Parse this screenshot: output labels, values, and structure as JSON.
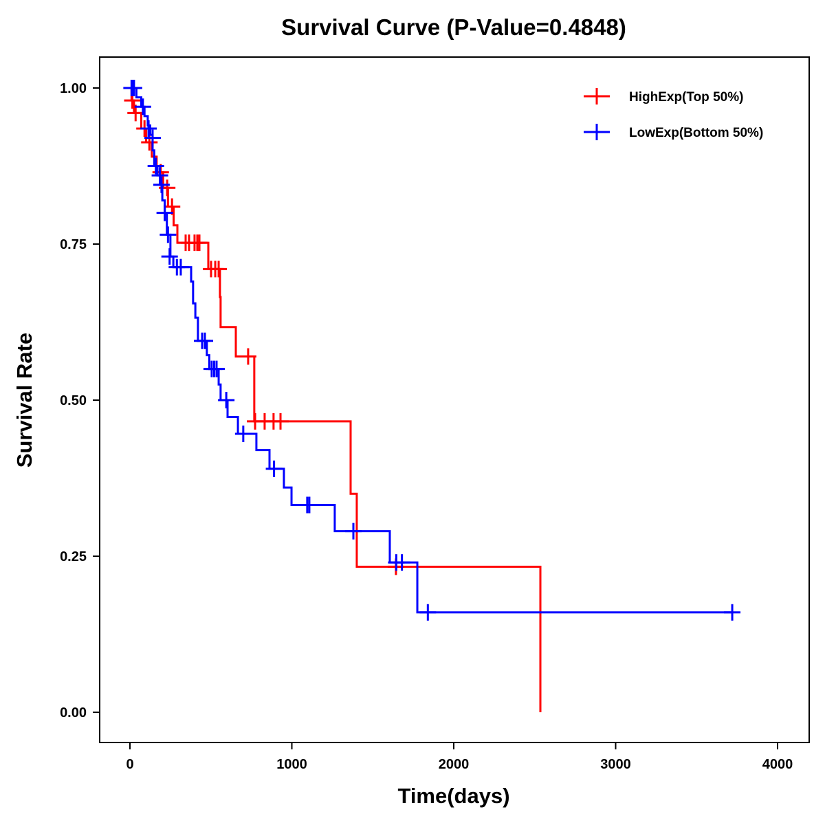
{
  "chart_data": {
    "type": "line",
    "subtype": "kaplan-meier",
    "title": "Survival Curve (P-Value=0.4848)",
    "xlabel": "Time(days)",
    "ylabel": "Survival Rate",
    "xlim": [
      -190,
      4200
    ],
    "ylim": [
      -0.048,
      1.05
    ],
    "xticks": [
      0,
      1000,
      2000,
      3000,
      4000
    ],
    "xtick_labels": [
      "0",
      "1000",
      "2000",
      "3000",
      "4000"
    ],
    "yticks": [
      0,
      0.25,
      0.5,
      0.75,
      1.0
    ],
    "ytick_labels": [
      "0.00",
      "0.25",
      "0.50",
      "0.75",
      "1.00"
    ],
    "grid": false,
    "legend_position": "top-right",
    "series": [
      {
        "name": "HighExp(Top 50%)",
        "color": "#ff0000",
        "end_time": 2535,
        "steps": [
          [
            0,
            1
          ],
          [
            10,
            0.98
          ],
          [
            25,
            0.96
          ],
          [
            70,
            0.935
          ],
          [
            100,
            0.913
          ],
          [
            135,
            0.89
          ],
          [
            165,
            0.865
          ],
          [
            205,
            0.84
          ],
          [
            235,
            0.81
          ],
          [
            270,
            0.78
          ],
          [
            293,
            0.752
          ],
          [
            484,
            0.71
          ],
          [
            556,
            0.665
          ],
          [
            560,
            0.617
          ],
          [
            654,
            0.57
          ],
          [
            768,
            0.466
          ],
          [
            1363,
            0.35
          ],
          [
            1401,
            0.233
          ],
          [
            2535,
            0
          ]
        ],
        "censors": [
          [
            15,
            0.98
          ],
          [
            35,
            0.96
          ],
          [
            90,
            0.935
          ],
          [
            120,
            0.913
          ],
          [
            190,
            0.865
          ],
          [
            230,
            0.84
          ],
          [
            260,
            0.81
          ],
          [
            344,
            0.752
          ],
          [
            365,
            0.752
          ],
          [
            399,
            0.752
          ],
          [
            416,
            0.752
          ],
          [
            429,
            0.752
          ],
          [
            501,
            0.71
          ],
          [
            527,
            0.71
          ],
          [
            548,
            0.71
          ],
          [
            730,
            0.57
          ],
          [
            773,
            0.466
          ],
          [
            832,
            0.466
          ],
          [
            887,
            0.466
          ],
          [
            930,
            0.466
          ],
          [
            1643,
            0.233
          ]
        ]
      },
      {
        "name": "LowExp(Bottom 50%)",
        "color": "#0000ff",
        "end_time": 3720,
        "steps": [
          [
            0,
            1
          ],
          [
            40,
            0.985
          ],
          [
            70,
            0.97
          ],
          [
            90,
            0.955
          ],
          [
            110,
            0.94
          ],
          [
            125,
            0.925
          ],
          [
            140,
            0.9
          ],
          [
            150,
            0.875
          ],
          [
            170,
            0.86
          ],
          [
            185,
            0.845
          ],
          [
            200,
            0.82
          ],
          [
            215,
            0.8
          ],
          [
            228,
            0.765
          ],
          [
            250,
            0.73
          ],
          [
            268,
            0.713
          ],
          [
            378,
            0.69
          ],
          [
            390,
            0.655
          ],
          [
            404,
            0.632
          ],
          [
            420,
            0.595
          ],
          [
            475,
            0.572
          ],
          [
            490,
            0.55
          ],
          [
            548,
            0.525
          ],
          [
            560,
            0.5
          ],
          [
            603,
            0.473
          ],
          [
            667,
            0.446
          ],
          [
            781,
            0.42
          ],
          [
            862,
            0.39
          ],
          [
            951,
            0.36
          ],
          [
            998,
            0.332
          ],
          [
            1265,
            0.29
          ],
          [
            1605,
            0.24
          ],
          [
            1775,
            0.16
          ]
        ],
        "censors": [
          [
            10,
            1
          ],
          [
            20,
            1
          ],
          [
            25,
            1
          ],
          [
            80,
            0.97
          ],
          [
            115,
            0.935
          ],
          [
            140,
            0.92
          ],
          [
            160,
            0.875
          ],
          [
            185,
            0.86
          ],
          [
            195,
            0.845
          ],
          [
            215,
            0.8
          ],
          [
            235,
            0.765
          ],
          [
            245,
            0.73
          ],
          [
            290,
            0.713
          ],
          [
            314,
            0.713
          ],
          [
            446,
            0.595
          ],
          [
            463,
            0.595
          ],
          [
            505,
            0.55
          ],
          [
            520,
            0.55
          ],
          [
            535,
            0.55
          ],
          [
            595,
            0.5
          ],
          [
            700,
            0.446
          ],
          [
            890,
            0.39
          ],
          [
            1095,
            0.332
          ],
          [
            1108,
            0.332
          ],
          [
            1380,
            0.29
          ],
          [
            1645,
            0.24
          ],
          [
            1680,
            0.24
          ],
          [
            1840,
            0.16
          ],
          [
            3720,
            0.16
          ]
        ]
      }
    ]
  }
}
